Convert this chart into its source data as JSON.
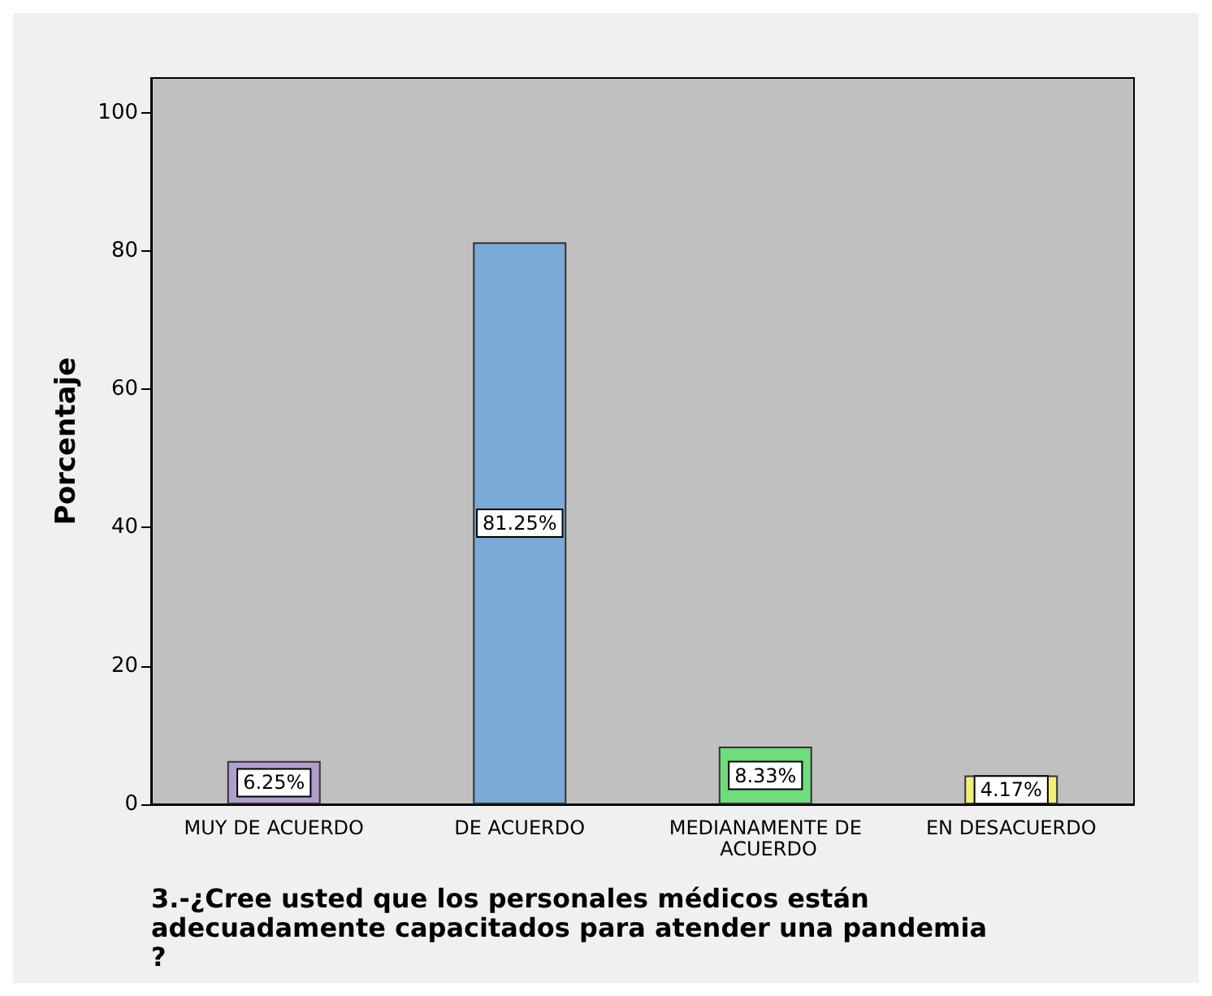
{
  "chart_data": {
    "type": "bar",
    "xlabel": "3.-¿Cree usted que los personales médicos están adecuadamente capacitados para atender una pandemia?",
    "ylabel": "Porcentaje",
    "categories": [
      "MUY DE ACUERDO",
      "DE ACUERDO",
      "MEDIANAMENTE DE ACUERDO",
      "EN DESACUERDO"
    ],
    "values": [
      6.25,
      81.25,
      8.33,
      4.17
    ],
    "colors": [
      "#b09fcc",
      "#7aaad8",
      "#6fdc7d",
      "#f4ee78"
    ],
    "value_labels": [
      "6.25%",
      "81.25%",
      "8.33%",
      "4.17%"
    ],
    "ylim": [
      0,
      105
    ],
    "yticks": [
      0,
      20,
      40,
      60,
      80,
      100
    ],
    "grid": false
  }
}
